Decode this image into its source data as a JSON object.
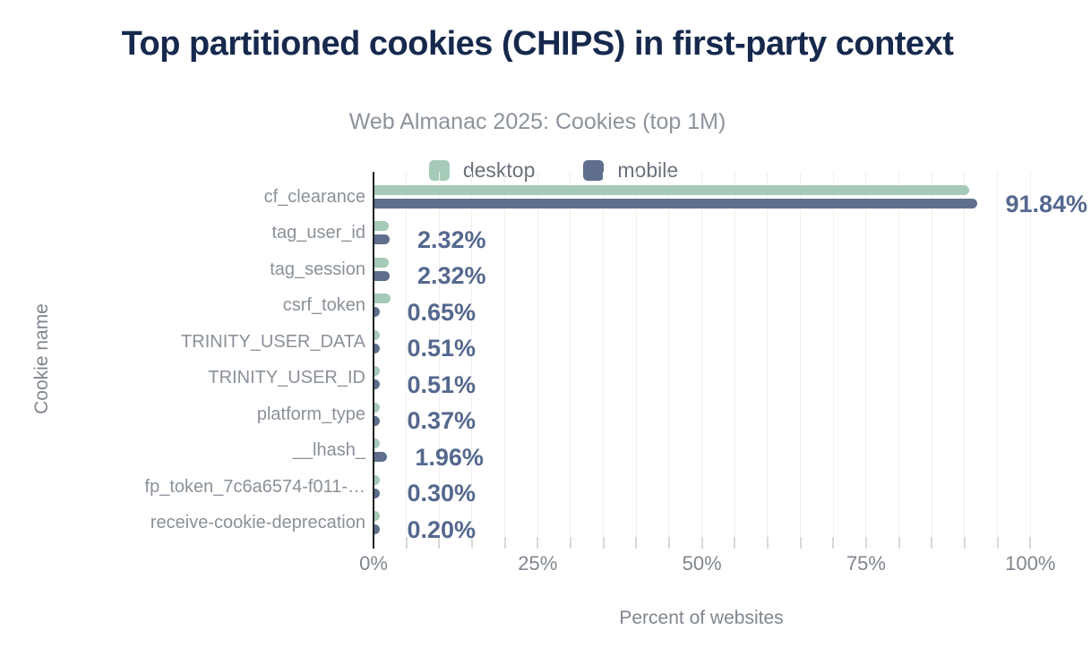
{
  "header": {
    "title": "Top partitioned cookies (CHIPS) in first-party context",
    "subtitle": "Web Almanac 2025: Cookies (top 1M)"
  },
  "legend": {
    "items": [
      {
        "label": "desktop",
        "color": "#a6cab8"
      },
      {
        "label": "mobile",
        "color": "#5e6e8c"
      }
    ]
  },
  "axes": {
    "x_label": "Percent of websites",
    "y_label": "Cookie name",
    "x_tick_labels": [
      "0%",
      "25%",
      "50%",
      "75%",
      "100%"
    ],
    "x_tick_values": [
      0,
      25,
      50,
      75,
      100
    ]
  },
  "chart_data": {
    "type": "bar",
    "orientation": "horizontal",
    "title": "Top partitioned cookies (CHIPS) in first-party context",
    "subtitle": "Web Almanac 2025: Cookies (top 1M)",
    "xlabel": "Percent of websites",
    "ylabel": "Cookie name",
    "xlim": [
      0,
      100
    ],
    "grid": "vertical minor gridlines every 5%",
    "legend_position": "top",
    "categories": [
      "cf_clearance",
      "tag_user_id",
      "tag_session",
      "csrf_token",
      "TRINITY_USER_DATA",
      "TRINITY_USER_ID",
      "platform_type",
      "__lhash_",
      "fp_token_7c6a6574-f011-…",
      "receive-cookie-deprecation"
    ],
    "series": [
      {
        "name": "desktop",
        "color": "#a6cab8",
        "values": [
          90.6,
          2.2,
          2.2,
          2.4,
          0.6,
          0.6,
          0.6,
          0.4,
          0.6,
          0.3
        ]
      },
      {
        "name": "mobile",
        "color": "#5e6e8c",
        "values": [
          91.84,
          2.32,
          2.32,
          0.65,
          0.51,
          0.51,
          0.37,
          1.96,
          0.3,
          0.2
        ]
      }
    ],
    "value_labels": {
      "labeled_series": "mobile",
      "texts": [
        "91.84%",
        "2.32%",
        "2.32%",
        "0.65%",
        "0.51%",
        "0.51%",
        "0.37%",
        "1.96%",
        "0.30%",
        "0.20%"
      ]
    },
    "x_minor_tick_step_pct": 5
  },
  "colors": {
    "title": "#16294d",
    "subtitle": "#8c939b",
    "category_labels": "#8a9199",
    "value_labels": "#55688e",
    "axis_line": "#212121",
    "gridline": "#f0f0f0",
    "tick_mark": "#d9d9d9",
    "tick_label": "#7f868e",
    "desktop_bar": "#a6cab8",
    "mobile_bar": "#5e6e8c",
    "background": "#ffffff"
  }
}
